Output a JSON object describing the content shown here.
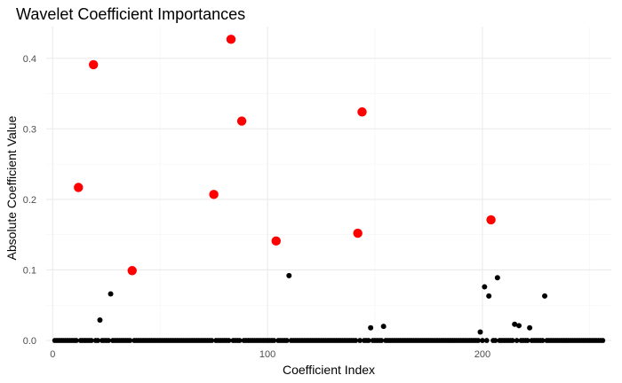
{
  "chart_data": {
    "type": "scatter",
    "title": "Wavelet Coefficient Importances",
    "xlabel": "Coefficient Index",
    "ylabel": "Absolute Coefficient Value",
    "xlim": [
      -3,
      260
    ],
    "ylim": [
      -0.005,
      0.445
    ],
    "x_ticks": [
      0,
      100,
      200
    ],
    "y_ticks": [
      0.0,
      0.1,
      0.2,
      0.3,
      0.4
    ],
    "x_tick_labels": [
      "0",
      "100",
      "200"
    ],
    "y_tick_labels": [
      "0.0",
      "0.1",
      "0.2",
      "0.3",
      "0.4"
    ],
    "grid": true,
    "legend": "none",
    "n_coefficients": 256,
    "highlight_color": "#ff0000",
    "point_color": "#000000",
    "highlighted_points": [
      {
        "x": 12,
        "y": 0.217
      },
      {
        "x": 19,
        "y": 0.391
      },
      {
        "x": 37,
        "y": 0.099
      },
      {
        "x": 75,
        "y": 0.207
      },
      {
        "x": 83,
        "y": 0.427
      },
      {
        "x": 88,
        "y": 0.311
      },
      {
        "x": 104,
        "y": 0.141
      },
      {
        "x": 142,
        "y": 0.152
      },
      {
        "x": 144,
        "y": 0.324
      },
      {
        "x": 204,
        "y": 0.171
      }
    ],
    "other_nonzero_points": [
      {
        "x": 22,
        "y": 0.029
      },
      {
        "x": 27,
        "y": 0.066
      },
      {
        "x": 110,
        "y": 0.092
      },
      {
        "x": 148,
        "y": 0.018
      },
      {
        "x": 154,
        "y": 0.02
      },
      {
        "x": 199,
        "y": 0.012
      },
      {
        "x": 201,
        "y": 0.076
      },
      {
        "x": 203,
        "y": 0.063
      },
      {
        "x": 207,
        "y": 0.089
      },
      {
        "x": 215,
        "y": 0.023
      },
      {
        "x": 217,
        "y": 0.021
      },
      {
        "x": 222,
        "y": 0.018
      },
      {
        "x": 229,
        "y": 0.063
      }
    ]
  }
}
